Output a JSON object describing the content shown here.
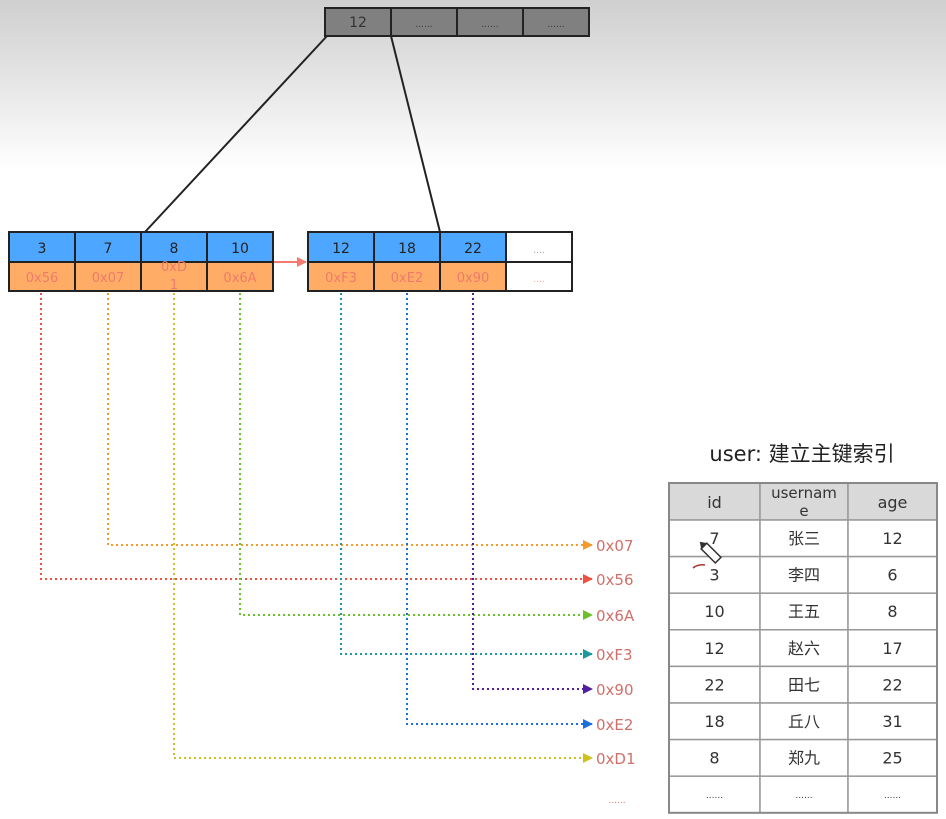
{
  "root_node": {
    "keys": [
      "12",
      "......",
      "......",
      "......"
    ],
    "color": "#808080"
  },
  "leaf_nodes": [
    {
      "keys": [
        "3",
        "7",
        "8",
        "10"
      ],
      "pointers": [
        "0x56",
        "0x07",
        "0xD1",
        "0x6A"
      ]
    },
    {
      "keys": [
        "12",
        "18",
        "22",
        "...."
      ],
      "pointers": [
        "0xF3",
        "0xE2",
        "0x90",
        "...."
      ]
    }
  ],
  "colors": {
    "key_cell": "#4da6ff",
    "pointer_cell": "#ffad66",
    "pointer_text": "#f07a6a",
    "address_text": "#d0706a",
    "leaf_link_arrow": "#f77a70"
  },
  "address_links": [
    {
      "address": "0x07",
      "from": "0x07",
      "color": "#f59a2a"
    },
    {
      "address": "0x56",
      "from": "0x56",
      "color": "#f05040"
    },
    {
      "address": "0x6A",
      "from": "0x6A",
      "color": "#6cc028"
    },
    {
      "address": "0xF3",
      "from": "0xF3",
      "color": "#1a9aa0"
    },
    {
      "address": "0x90",
      "from": "0x90",
      "color": "#5020a0"
    },
    {
      "address": "0xE2",
      "from": "0xE2",
      "color": "#1a70d8"
    },
    {
      "address": "0xD1",
      "from": "0xD1",
      "color": "#d0c020"
    }
  ],
  "address_ellipsis": "......",
  "table": {
    "title": "user: 建立主键索引",
    "columns": [
      "id",
      "usernam\ne",
      "age"
    ],
    "rows": [
      [
        "7",
        "张三",
        "12"
      ],
      [
        "3",
        "李四",
        "6"
      ],
      [
        "10",
        "王五",
        "8"
      ],
      [
        "12",
        "赵六",
        "17"
      ],
      [
        "22",
        "田七",
        "22"
      ],
      [
        "18",
        "丘八",
        "31"
      ],
      [
        "8",
        "郑九",
        "25"
      ],
      [
        "......",
        "......",
        "......"
      ]
    ]
  }
}
